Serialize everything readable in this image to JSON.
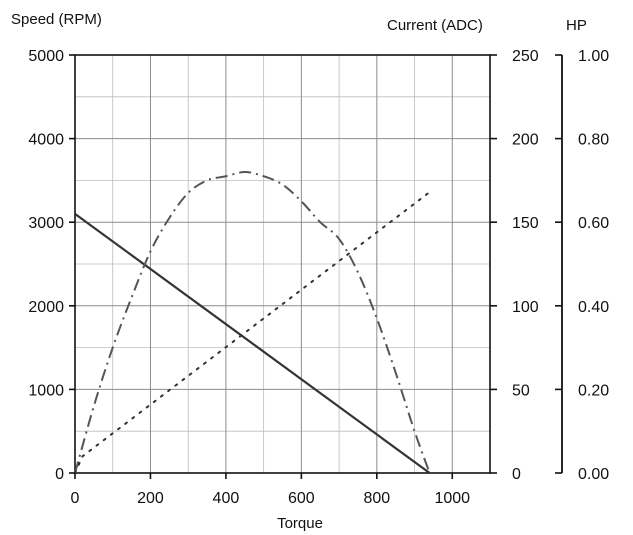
{
  "chart_data": {
    "type": "line",
    "x_axis": {
      "label": "Torque",
      "range": [
        0,
        1100
      ],
      "major_ticks": [
        0,
        200,
        400,
        600,
        800,
        1000
      ],
      "minor_step": 100
    },
    "y_axes": [
      {
        "id": "speed",
        "label": "Speed (RPM)",
        "position": "left",
        "range": [
          0,
          5000
        ],
        "major_ticks": [
          0,
          1000,
          2000,
          3000,
          4000,
          5000
        ],
        "minor_step": 500,
        "decimals": 0
      },
      {
        "id": "current",
        "label": "Current (ADC)",
        "position": "right-inner",
        "range": [
          0,
          250
        ],
        "major_ticks": [
          0,
          50,
          100,
          150,
          200,
          250
        ],
        "decimals": 0
      },
      {
        "id": "hp",
        "label": "HP",
        "position": "right-outer",
        "range": [
          0,
          1.0
        ],
        "major_ticks": [
          0,
          0.2,
          0.4,
          0.6,
          0.8,
          1.0
        ],
        "decimals": 2
      }
    ],
    "grid": true,
    "series": [
      {
        "id": "speed-curve",
        "axis": "speed",
        "style": "solid",
        "color": "#333333",
        "points": [
          [
            0,
            3100
          ],
          [
            940,
            0
          ]
        ]
      },
      {
        "id": "hp-curve",
        "axis": "hp",
        "style": "dash-dot",
        "color": "#555555",
        "points": [
          [
            0,
            0.0
          ],
          [
            50,
            0.16
          ],
          [
            100,
            0.3
          ],
          [
            150,
            0.42
          ],
          [
            200,
            0.53
          ],
          [
            250,
            0.61
          ],
          [
            300,
            0.67
          ],
          [
            350,
            0.7
          ],
          [
            400,
            0.71
          ],
          [
            450,
            0.72
          ],
          [
            500,
            0.71
          ],
          [
            550,
            0.69
          ],
          [
            600,
            0.65
          ],
          [
            650,
            0.6
          ],
          [
            700,
            0.56
          ],
          [
            750,
            0.48
          ],
          [
            800,
            0.37
          ],
          [
            850,
            0.24
          ],
          [
            900,
            0.1
          ],
          [
            940,
            0.0
          ]
        ]
      },
      {
        "id": "current-curve",
        "axis": "current",
        "style": "dotted",
        "color": "#333333",
        "points": [
          [
            0,
            0
          ],
          [
            20,
            10
          ],
          [
            940,
            168
          ]
        ]
      }
    ]
  }
}
